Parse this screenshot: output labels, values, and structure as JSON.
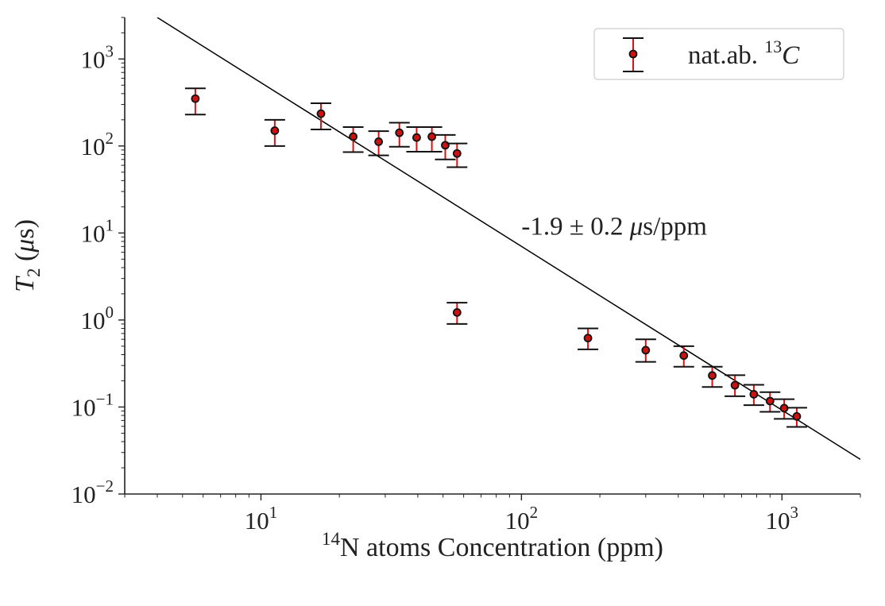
{
  "chart_data": {
    "type": "scatter",
    "x_scale": "log",
    "y_scale": "log",
    "xlim": [
      3,
      2000
    ],
    "ylim": [
      0.01,
      3000
    ],
    "grid": false,
    "legend_position": "top-right",
    "title": "",
    "xlabel": {
      "sup": "14",
      "text": "N atoms Concentration (ppm)"
    },
    "ylabel": {
      "main": "T",
      "sub": "2",
      "unit_open": " (",
      "mu": "μ",
      "unit_rest": "s)"
    },
    "x_ticks": [
      {
        "value": 10,
        "base": "10",
        "exp": "1"
      },
      {
        "value": 100,
        "base": "10",
        "exp": "2"
      },
      {
        "value": 1000,
        "base": "10",
        "exp": "3"
      }
    ],
    "y_ticks": [
      {
        "value": 0.01,
        "base": "10",
        "exp": "−2"
      },
      {
        "value": 0.1,
        "base": "10",
        "exp": "−1"
      },
      {
        "value": 1,
        "base": "10",
        "exp": "0"
      },
      {
        "value": 10,
        "base": "10",
        "exp": "1"
      },
      {
        "value": 100,
        "base": "10",
        "exp": "2"
      },
      {
        "value": 1000,
        "base": "10",
        "exp": "3"
      }
    ],
    "series": [
      {
        "name": "nat.ab. 13C",
        "legend_text": "nat.ab. ",
        "legend_sup": "13",
        "legend_italic": "C",
        "marker_color": "#cc1111",
        "error_color": "#dd1111",
        "points": [
          {
            "x": 5.6,
            "y": 350,
            "ylo": 230,
            "yhi": 460
          },
          {
            "x": 11.3,
            "y": 150,
            "ylo": 100,
            "yhi": 200
          },
          {
            "x": 17,
            "y": 235,
            "ylo": 155,
            "yhi": 310
          },
          {
            "x": 22.6,
            "y": 128,
            "ylo": 85,
            "yhi": 165
          },
          {
            "x": 28.3,
            "y": 112,
            "ylo": 78,
            "yhi": 148
          },
          {
            "x": 34,
            "y": 142,
            "ylo": 98,
            "yhi": 185
          },
          {
            "x": 39.6,
            "y": 125,
            "ylo": 86,
            "yhi": 165
          },
          {
            "x": 45.3,
            "y": 128,
            "ylo": 86,
            "yhi": 165
          },
          {
            "x": 51,
            "y": 102,
            "ylo": 70,
            "yhi": 134
          },
          {
            "x": 56.6,
            "y": 82,
            "ylo": 57,
            "yhi": 107
          },
          {
            "x": 56.6,
            "y": 1.22,
            "ylo": 0.9,
            "yhi": 1.58
          },
          {
            "x": 180,
            "y": 0.62,
            "ylo": 0.46,
            "yhi": 0.8
          },
          {
            "x": 300,
            "y": 0.45,
            "ylo": 0.33,
            "yhi": 0.6
          },
          {
            "x": 420,
            "y": 0.39,
            "ylo": 0.29,
            "yhi": 0.5
          },
          {
            "x": 540,
            "y": 0.23,
            "ylo": 0.17,
            "yhi": 0.29
          },
          {
            "x": 660,
            "y": 0.178,
            "ylo": 0.133,
            "yhi": 0.232
          },
          {
            "x": 780,
            "y": 0.14,
            "ylo": 0.105,
            "yhi": 0.18
          },
          {
            "x": 900,
            "y": 0.117,
            "ylo": 0.088,
            "yhi": 0.148
          },
          {
            "x": 1020,
            "y": 0.097,
            "ylo": 0.073,
            "yhi": 0.123
          },
          {
            "x": 1140,
            "y": 0.078,
            "ylo": 0.059,
            "yhi": 0.098
          }
        ]
      }
    ],
    "fit_line": {
      "points": [
        {
          "x": 4,
          "y": 3000
        },
        {
          "x": 2000,
          "y": 0.025
        }
      ]
    },
    "annotation": {
      "prefix": "-1.9 ± 0.2 ",
      "mu": "μ",
      "suffix": "s/ppm",
      "x": 100,
      "y": 12
    }
  }
}
